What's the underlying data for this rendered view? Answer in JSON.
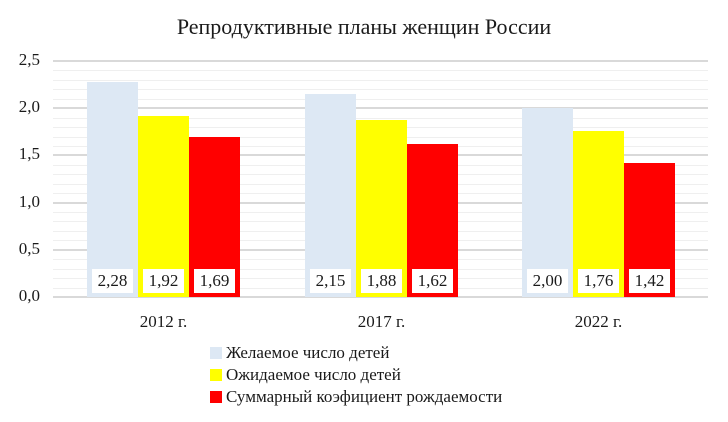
{
  "chart_data": {
    "type": "bar",
    "title": "Репродуктивные планы женщин России",
    "xlabel": "",
    "ylabel": "",
    "categories": [
      "2012 г.",
      "2017 г.",
      "2022 г."
    ],
    "series": [
      {
        "name": "Желаемое число детей",
        "color": "#dde8f4",
        "values": [
          2.28,
          2.15,
          2.0
        ],
        "labels": [
          "2,28",
          "2,15",
          "2,00"
        ]
      },
      {
        "name": "Ожидаемое число детей",
        "color": "#ffff00",
        "values": [
          1.92,
          1.88,
          1.76
        ],
        "labels": [
          "1,92",
          "1,88",
          "1,76"
        ]
      },
      {
        "name": "Суммарный коэфициент рождаемости",
        "color": "#ff0000",
        "values": [
          1.69,
          1.62,
          1.42
        ],
        "labels": [
          "1,69",
          "1,62",
          "1,42"
        ]
      }
    ],
    "ylim": [
      0,
      2.5
    ],
    "yticks": [
      "0,0",
      "0,5",
      "1,0",
      "1,5",
      "2,0",
      "2,5"
    ],
    "grid": true,
    "legend_position": "bottom"
  }
}
